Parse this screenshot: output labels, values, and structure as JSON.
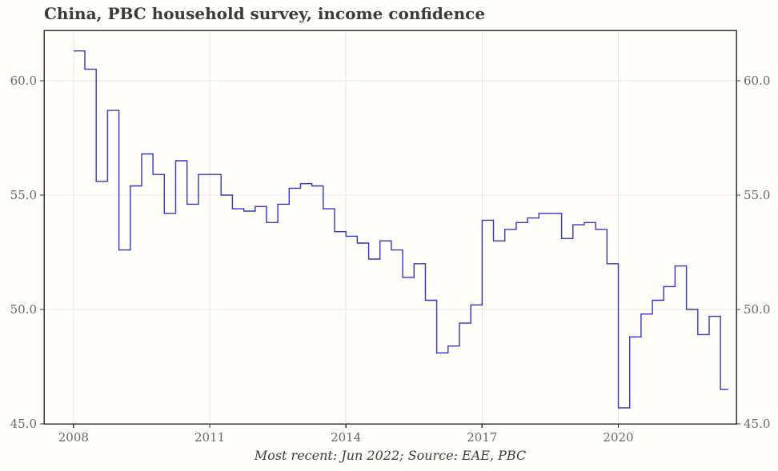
{
  "title": "China, PBC household survey, income confidence",
  "caption": "Most recent: Jun 2022; Source: EAE, PBC",
  "colors": {
    "background": "#fffefb",
    "frame": "#333333",
    "grid": "#e7e7e7",
    "title_text": "#3b3b3b",
    "tick_text": "#666666",
    "caption_text": "#3b3b3b"
  },
  "chart_data": {
    "type": "line",
    "style": "step",
    "title": "China, PBC household survey, income confidence",
    "source_note": "Most recent: Jun 2022; Source: EAE, PBC",
    "series_name": "PBC household survey income confidence index",
    "frequency": "quarterly",
    "first_period": "2008 Q1",
    "last_period": "Jun 2022",
    "x_start": 2008,
    "x_interval": 0.25,
    "values": [
      61.3,
      60.5,
      55.6,
      58.7,
      52.6,
      55.4,
      56.8,
      55.9,
      54.2,
      56.5,
      54.6,
      55.9,
      55.9,
      55.0,
      54.4,
      54.3,
      54.5,
      53.8,
      54.6,
      55.3,
      55.5,
      55.4,
      54.4,
      53.4,
      53.2,
      52.9,
      52.2,
      53.0,
      52.6,
      51.4,
      52.0,
      50.4,
      48.1,
      48.4,
      49.4,
      50.2,
      53.9,
      53.0,
      53.5,
      53.8,
      54.0,
      54.2,
      54.2,
      53.1,
      53.7,
      53.8,
      53.5,
      52.0,
      45.7,
      48.8,
      49.8,
      50.4,
      51.0,
      51.9,
      50.0,
      48.9,
      49.7,
      46.5
    ],
    "xlim": [
      2007.35,
      2022.6
    ],
    "ylim": [
      45.0,
      62.2
    ],
    "xticks": [
      2008,
      2011,
      2014,
      2017,
      2020
    ],
    "xtick_labels": [
      "2008",
      "2011",
      "2014",
      "2017",
      "2020"
    ],
    "yticks": [
      45.0,
      50.0,
      55.0,
      60.0
    ],
    "ytick_labels": [
      "45.0",
      "50.0",
      "55.0",
      "60.0"
    ],
    "ytick_sides": [
      "left",
      "right"
    ],
    "line_color": "#3232d6",
    "grid": true,
    "legend": "none"
  }
}
